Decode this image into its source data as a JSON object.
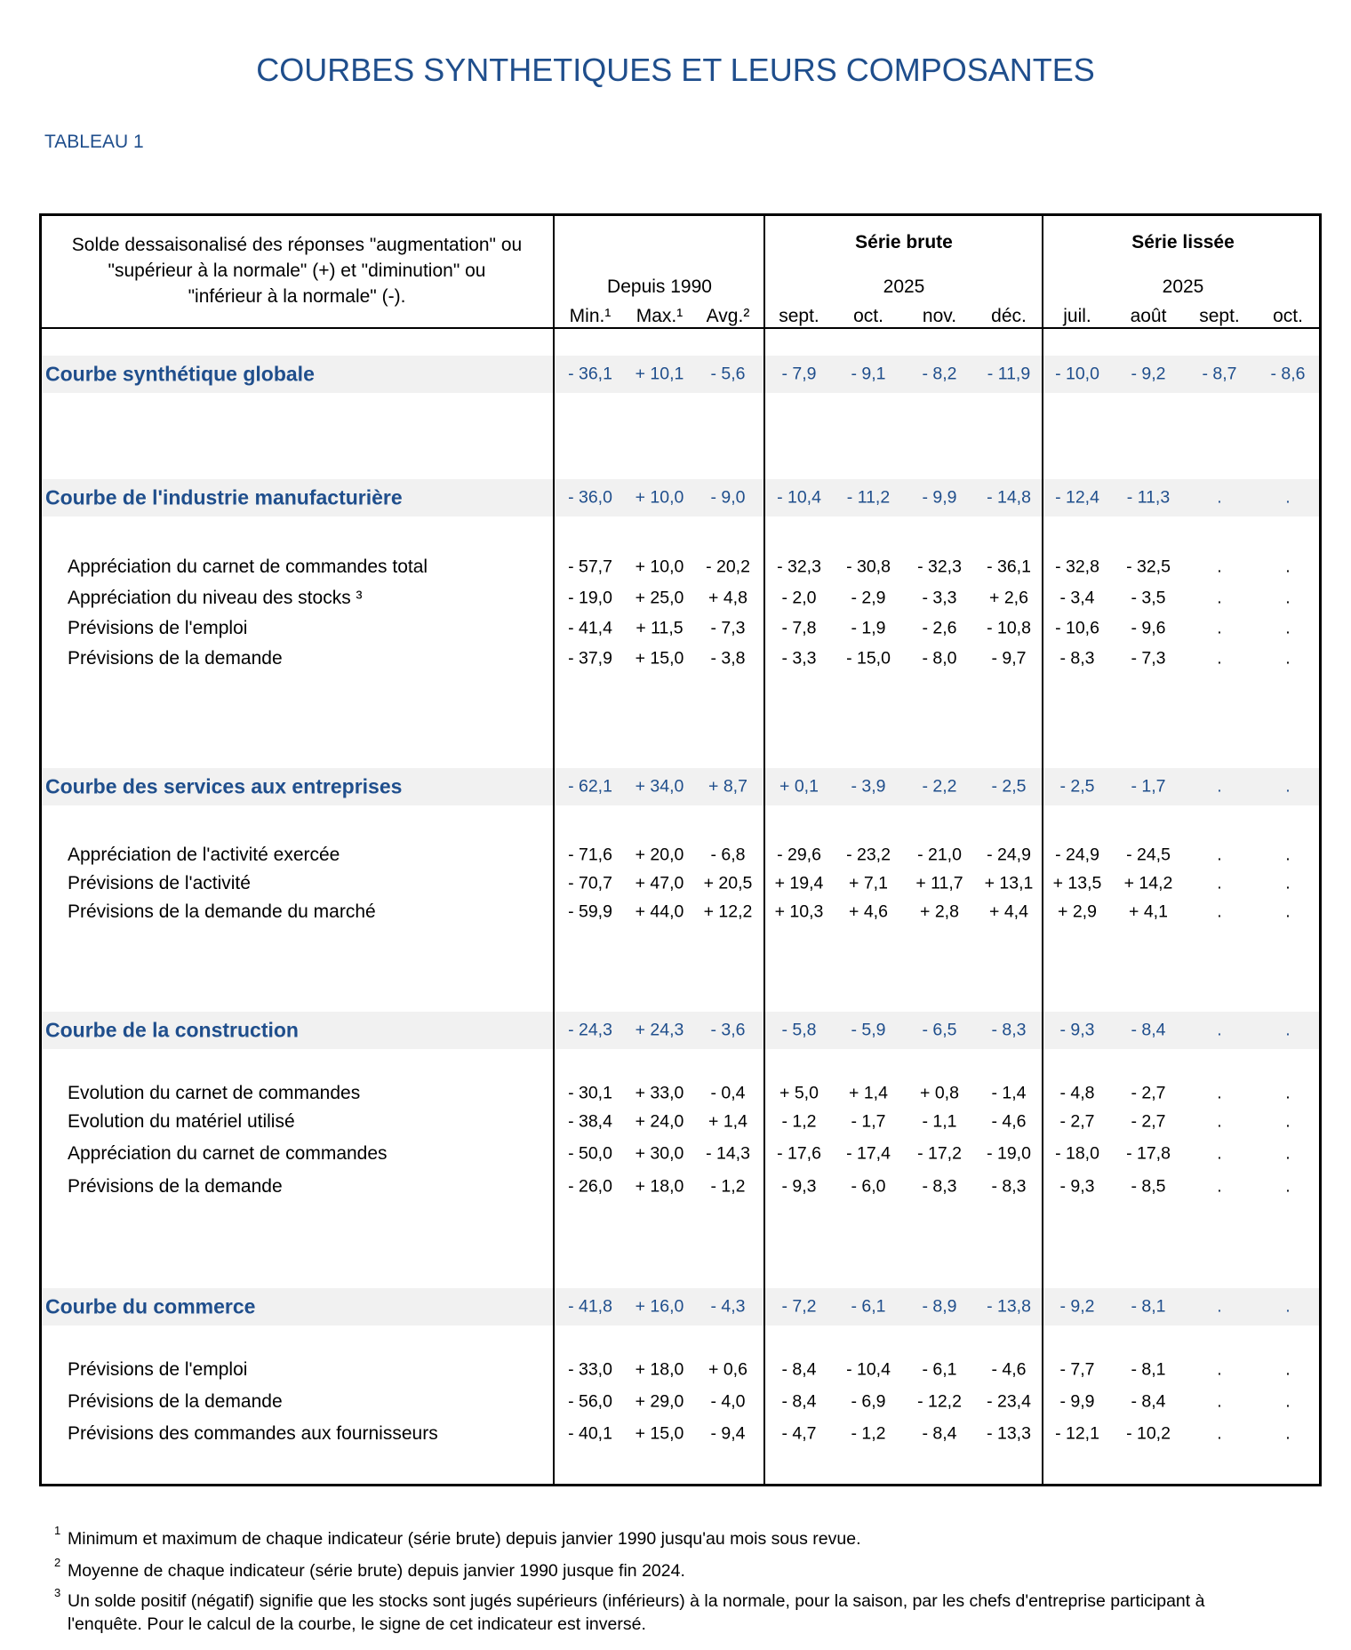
{
  "title": "COURBES SYNTHETIQUES ET LEURS COMPOSANTES",
  "table_label": "TABLEAU 1",
  "header": {
    "description_lines": [
      "Solde dessaisonalisé des réponses \"augmentation\" ou",
      "\"supérieur à la normale\" (+) et \"diminution\" ou",
      "\"inférieur à la normale\" (-)."
    ],
    "depuis": "Depuis 1990",
    "serie_brute": "Série brute",
    "serie_brute_year": "2025",
    "serie_lissee": "Série lissée",
    "serie_lissee_year": "2025",
    "columns": [
      "Min.¹",
      "Max.¹",
      "Avg.²",
      "sept.",
      "oct.",
      "nov.",
      "déc.",
      "juil.",
      "août",
      "sept.",
      "oct."
    ]
  },
  "sections": [
    {
      "label": "Courbe synthétique globale",
      "values": [
        "- 36,1",
        "+ 10,1",
        "- 5,6",
        "- 7,9",
        "- 9,1",
        "- 8,2",
        "- 11,9",
        "- 10,0",
        "- 9,2",
        "- 8,7",
        "- 8,6"
      ],
      "items": []
    },
    {
      "label": "Courbe de l'industrie manufacturière",
      "values": [
        "- 36,0",
        "+ 10,0",
        "- 9,0",
        "- 10,4",
        "- 11,2",
        "- 9,9",
        "- 14,8",
        "- 12,4",
        "- 11,3",
        ".",
        "."
      ],
      "items": [
        {
          "label": "Appréciation du carnet de commandes total",
          "values": [
            "- 57,7",
            "+ 10,0",
            "- 20,2",
            "- 32,3",
            "- 30,8",
            "- 32,3",
            "- 36,1",
            "- 32,8",
            "- 32,5",
            ".",
            "."
          ]
        },
        {
          "label": "Appréciation du niveau des stocks ³",
          "values": [
            "- 19,0",
            "+ 25,0",
            "+ 4,8",
            "- 2,0",
            "- 2,9",
            "- 3,3",
            "+ 2,6",
            "- 3,4",
            "- 3,5",
            ".",
            "."
          ]
        },
        {
          "label": "Prévisions de l'emploi",
          "values": [
            "- 41,4",
            "+ 11,5",
            "- 7,3",
            "- 7,8",
            "- 1,9",
            "- 2,6",
            "- 10,8",
            "- 10,6",
            "- 9,6",
            ".",
            "."
          ]
        },
        {
          "label": "Prévisions de la demande",
          "values": [
            "- 37,9",
            "+ 15,0",
            "- 3,8",
            "- 3,3",
            "- 15,0",
            "- 8,0",
            "- 9,7",
            "- 8,3",
            "- 7,3",
            ".",
            "."
          ]
        }
      ]
    },
    {
      "label": "Courbe des services aux entreprises",
      "values": [
        "- 62,1",
        "+ 34,0",
        "+ 8,7",
        "+ 0,1",
        "- 3,9",
        "- 2,2",
        "- 2,5",
        "- 2,5",
        "- 1,7",
        ".",
        "."
      ],
      "items": [
        {
          "label": "Appréciation de l'activité exercée",
          "values": [
            "- 71,6",
            "+ 20,0",
            "- 6,8",
            "- 29,6",
            "- 23,2",
            "- 21,0",
            "- 24,9",
            "- 24,9",
            "- 24,5",
            ".",
            "."
          ]
        },
        {
          "label": "Prévisions de l'activité",
          "values": [
            "- 70,7",
            "+ 47,0",
            "+ 20,5",
            "+ 19,4",
            "+ 7,1",
            "+ 11,7",
            "+ 13,1",
            "+ 13,5",
            "+ 14,2",
            ".",
            "."
          ]
        },
        {
          "label": "Prévisions de la demande du marché",
          "values": [
            "- 59,9",
            "+ 44,0",
            "+ 12,2",
            "+ 10,3",
            "+ 4,6",
            "+ 2,8",
            "+ 4,4",
            "+ 2,9",
            "+ 4,1",
            ".",
            "."
          ]
        }
      ]
    },
    {
      "label": "Courbe de la construction",
      "values": [
        "- 24,3",
        "+ 24,3",
        "- 3,6",
        "- 5,8",
        "- 5,9",
        "- 6,5",
        "- 8,3",
        "- 9,3",
        "- 8,4",
        ".",
        "."
      ],
      "items": [
        {
          "label": "Evolution du carnet de commandes",
          "values": [
            "- 30,1",
            "+ 33,0",
            "- 0,4",
            "+ 5,0",
            "+ 1,4",
            "+ 0,8",
            "- 1,4",
            "- 4,8",
            "- 2,7",
            ".",
            "."
          ]
        },
        {
          "label": "Evolution du matériel utilisé",
          "values": [
            "- 38,4",
            "+ 24,0",
            "+ 1,4",
            "- 1,2",
            "- 1,7",
            "- 1,1",
            "- 4,6",
            "- 2,7",
            "- 2,7",
            ".",
            "."
          ]
        },
        {
          "label": "Appréciation du carnet de commandes",
          "values": [
            "- 50,0",
            "+ 30,0",
            "- 14,3",
            "- 17,6",
            "- 17,4",
            "- 17,2",
            "- 19,0",
            "- 18,0",
            "- 17,8",
            ".",
            "."
          ]
        },
        {
          "label": "Prévisions de la demande",
          "values": [
            "- 26,0",
            "+ 18,0",
            "- 1,2",
            "- 9,3",
            "- 6,0",
            "- 8,3",
            "- 8,3",
            "- 9,3",
            "- 8,5",
            ".",
            "."
          ]
        }
      ]
    },
    {
      "label": "Courbe du commerce",
      "values": [
        "- 41,8",
        "+ 16,0",
        "- 4,3",
        "- 7,2",
        "- 6,1",
        "- 8,9",
        "- 13,8",
        "- 9,2",
        "- 8,1",
        ".",
        "."
      ],
      "items": [
        {
          "label": "Prévisions de l'emploi",
          "values": [
            "- 33,0",
            "+ 18,0",
            "+ 0,6",
            "- 8,4",
            "- 10,4",
            "- 6,1",
            "- 4,6",
            "- 7,7",
            "- 8,1",
            ".",
            "."
          ]
        },
        {
          "label": "Prévisions de la demande",
          "values": [
            "- 56,0",
            "+ 29,0",
            "- 4,0",
            "- 8,4",
            "- 6,9",
            "- 12,2",
            "- 23,4",
            "- 9,9",
            "- 8,4",
            ".",
            "."
          ]
        },
        {
          "label": "Prévisions des commandes aux fournisseurs",
          "values": [
            "- 40,1",
            "+ 15,0",
            "- 9,4",
            "- 4,7",
            "- 1,2",
            "- 8,4",
            "- 13,3",
            "- 12,1",
            "- 10,2",
            ".",
            "."
          ]
        }
      ]
    }
  ],
  "footnotes": [
    {
      "mark": "1",
      "lines": [
        "Minimum et maximum de chaque indicateur (série brute) depuis janvier 1990 jusqu'au mois sous revue."
      ]
    },
    {
      "mark": "2",
      "lines": [
        "Moyenne de chaque indicateur (série brute) depuis janvier 1990 jusque fin 2024."
      ]
    },
    {
      "mark": "3",
      "lines": [
        "Un solde positif (négatif) signifie que les stocks sont jugés supérieurs (inférieurs) à la normale, pour la saison, par les chefs d'entreprise participant à",
        "l'enquête. Pour le calcul de la courbe, le signe de cet indicateur est inversé."
      ]
    }
  ]
}
